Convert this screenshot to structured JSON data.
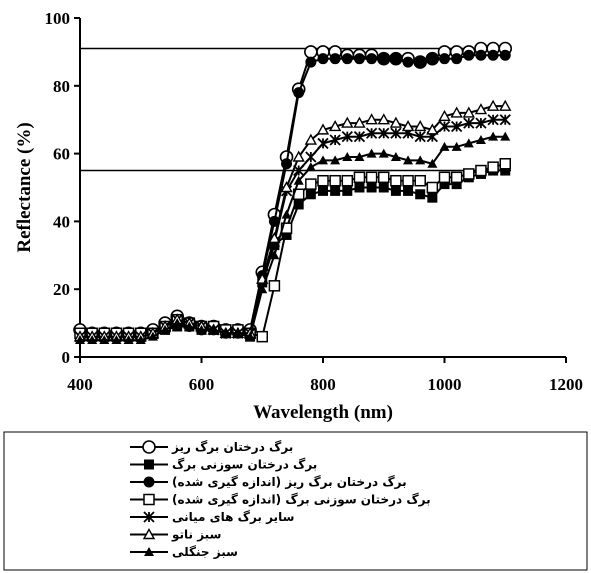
{
  "chart_data": {
    "type": "line",
    "title": "",
    "xlabel": "Wavelength (nm)",
    "ylabel": "Reflectance (%)",
    "xlim": [
      400,
      1200
    ],
    "ylim": [
      0,
      100
    ],
    "xticks": [
      "400",
      "600",
      "800",
      "1000",
      "1200"
    ],
    "yticks": [
      "0",
      "20",
      "40",
      "60",
      "80",
      "100"
    ],
    "grid": false,
    "legend_position": "bottom",
    "reference_lines": [
      91,
      55
    ],
    "x": [
      400,
      420,
      440,
      460,
      480,
      500,
      520,
      540,
      560,
      580,
      600,
      620,
      640,
      660,
      680,
      700,
      720,
      740,
      760,
      780,
      800,
      820,
      840,
      860,
      880,
      900,
      920,
      940,
      960,
      980,
      1000,
      1020,
      1040,
      1060,
      1080,
      1100
    ],
    "series": [
      {
        "name": "برگ درختان برگ ریز",
        "marker": "circle-open",
        "values": [
          8,
          7,
          7,
          7,
          7,
          7,
          8,
          10,
          12,
          10,
          9,
          9,
          8,
          8,
          8,
          25,
          42,
          59,
          79,
          90,
          90,
          90,
          89,
          89,
          89,
          88,
          88,
          88,
          87,
          88,
          90,
          90,
          90,
          91,
          91,
          91
        ]
      },
      {
        "name": "برگ درختان سوزنی برگ",
        "marker": "square-filled",
        "values": [
          6,
          6,
          6,
          6,
          6,
          6,
          7,
          8,
          9,
          9,
          8,
          8,
          7,
          7,
          6,
          22,
          33,
          36,
          45,
          48,
          49,
          49,
          49,
          50,
          50,
          50,
          49,
          49,
          48,
          47,
          51,
          51,
          53,
          54,
          55,
          55
        ]
      },
      {
        "name": "برگ درختان برگ ریز (اندازه گیری شده)",
        "marker": "circle-filled",
        "values": [
          6,
          6,
          6,
          6,
          6,
          6,
          7,
          9,
          10,
          9,
          8,
          8,
          7,
          7,
          7,
          24,
          40,
          57,
          78,
          87,
          88,
          88,
          88,
          88,
          88,
          88,
          88,
          87,
          87,
          88,
          88,
          88,
          89,
          89,
          89,
          89
        ]
      },
      {
        "name": "برگ درختان سوزنی برگ (اندازه گیری شده)",
        "marker": "square-open",
        "values": [
          7,
          7,
          7,
          7,
          7,
          7,
          7,
          9,
          11,
          10,
          9,
          9,
          8,
          8,
          7,
          6,
          21,
          38,
          48,
          51,
          52,
          52,
          52,
          53,
          53,
          53,
          52,
          52,
          52,
          50,
          53,
          53,
          54,
          55,
          56,
          57
        ]
      },
      {
        "name": "سایر برگ های میانی",
        "marker": "x-star",
        "values": [
          6,
          6,
          6,
          6,
          6,
          6,
          7,
          9,
          11,
          10,
          9,
          8,
          7,
          7,
          7,
          23,
          34,
          49,
          55,
          59,
          63,
          64,
          65,
          65,
          66,
          66,
          66,
          66,
          65,
          65,
          68,
          68,
          69,
          69,
          70,
          70
        ]
      },
      {
        "name": "سبز ناتو",
        "marker": "triangle-open",
        "values": [
          6,
          6,
          6,
          6,
          6,
          6,
          7,
          9,
          11,
          10,
          9,
          8,
          7,
          7,
          7,
          23,
          35,
          50,
          59,
          64,
          67,
          68,
          69,
          69,
          70,
          70,
          69,
          68,
          68,
          67,
          71,
          72,
          72,
          73,
          74,
          74
        ]
      },
      {
        "name": "سبز جنگلی",
        "marker": "triangle-filled",
        "values": [
          5,
          5,
          5,
          5,
          5,
          5,
          6,
          8,
          10,
          9,
          8,
          8,
          7,
          7,
          6,
          20,
          30,
          42,
          52,
          56,
          58,
          58,
          59,
          59,
          60,
          60,
          59,
          58,
          58,
          57,
          62,
          62,
          63,
          64,
          65,
          65
        ]
      }
    ]
  }
}
